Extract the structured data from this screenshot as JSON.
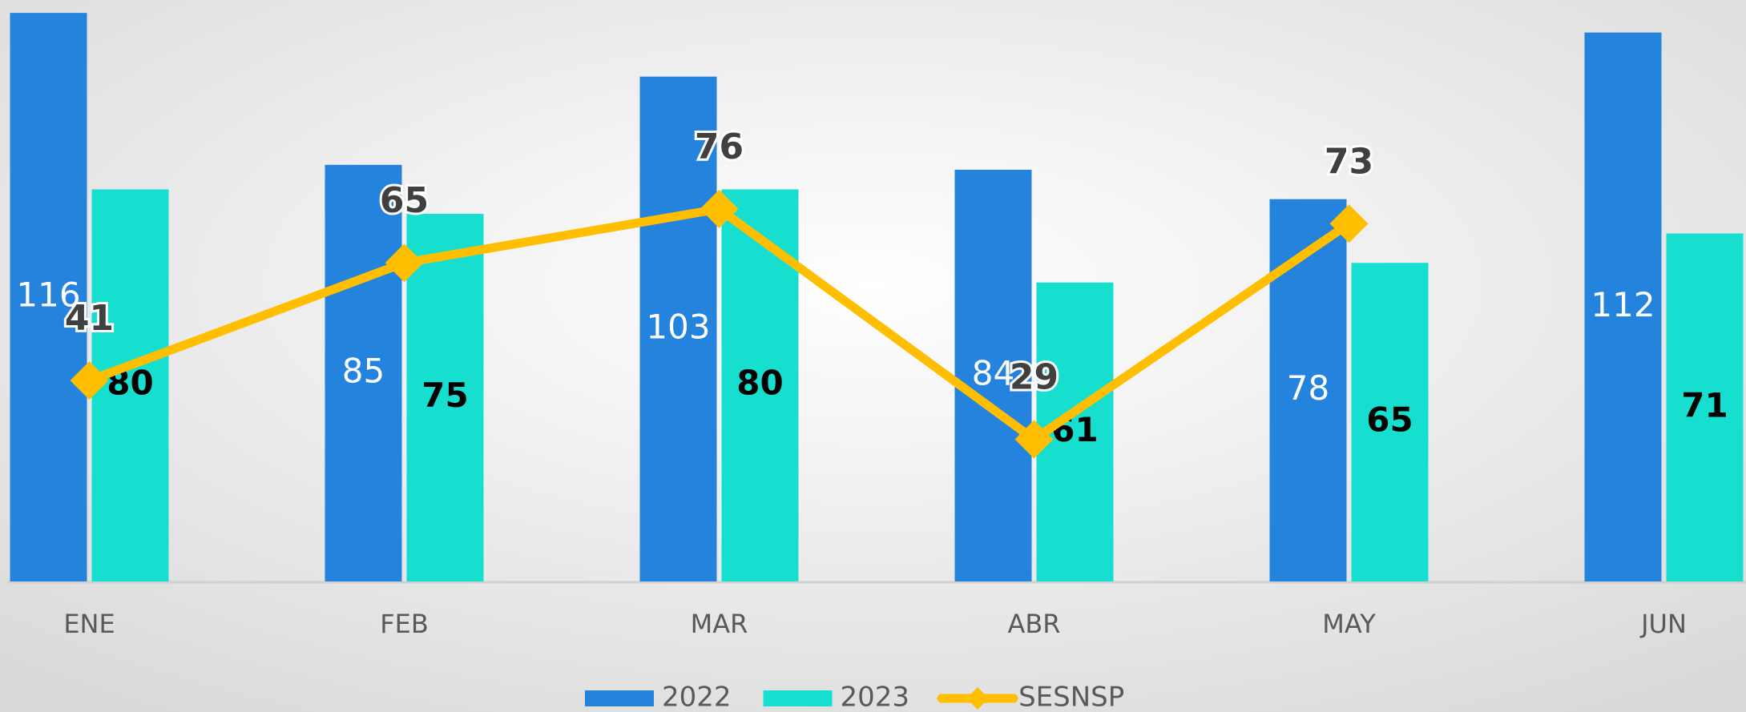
{
  "chart_data": {
    "type": "bar",
    "categories": [
      "ENE",
      "FEB",
      "MAR",
      "ABR",
      "MAY",
      "JUN"
    ],
    "series": [
      {
        "name": "2022",
        "color": "#2383dd",
        "type": "bar",
        "values": [
          116,
          85,
          103,
          84,
          78,
          112
        ]
      },
      {
        "name": "2023",
        "color": "#17dfd0",
        "type": "bar",
        "values": [
          80,
          75,
          80,
          61,
          65,
          71
        ]
      },
      {
        "name": "SESNSP",
        "color": "#ffbf00",
        "type": "line",
        "values": [
          41,
          65,
          76,
          29,
          73,
          null
        ]
      }
    ],
    "ylim": [
      0,
      117
    ],
    "legend": "bottom"
  }
}
